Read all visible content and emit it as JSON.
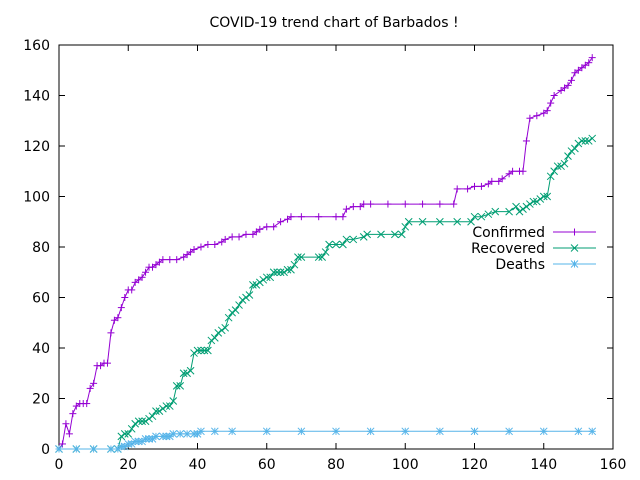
{
  "chart_data": {
    "type": "line",
    "title": "COVID-19 trend chart of Barbados !",
    "xlabel": "",
    "ylabel": "",
    "xlim": [
      0,
      160
    ],
    "ylim": [
      0,
      160
    ],
    "xticks": [
      "0",
      "20",
      "40",
      "60",
      "80",
      "100",
      "120",
      "140",
      "160"
    ],
    "yticks": [
      "0",
      "20",
      "40",
      "60",
      "80",
      "100",
      "120",
      "140",
      "160"
    ],
    "grid": false,
    "legend": "right",
    "series": [
      {
        "name": "Confirmed",
        "color": "#9400d3",
        "marker": "plus",
        "points": [
          [
            0,
            0
          ],
          [
            1,
            2
          ],
          [
            2,
            10
          ],
          [
            3,
            6
          ],
          [
            4,
            14
          ],
          [
            5,
            17
          ],
          [
            6,
            18
          ],
          [
            7,
            18
          ],
          [
            8,
            18
          ],
          [
            9,
            24
          ],
          [
            10,
            26
          ],
          [
            11,
            33
          ],
          [
            12,
            33
          ],
          [
            13,
            34
          ],
          [
            14,
            34
          ],
          [
            15,
            46
          ],
          [
            16,
            51
          ],
          [
            17,
            52
          ],
          [
            18,
            56
          ],
          [
            19,
            60
          ],
          [
            20,
            63
          ],
          [
            21,
            63
          ],
          [
            22,
            66
          ],
          [
            23,
            67
          ],
          [
            24,
            68
          ],
          [
            25,
            70
          ],
          [
            26,
            72
          ],
          [
            27,
            72
          ],
          [
            28,
            73
          ],
          [
            29,
            74
          ],
          [
            30,
            75
          ],
          [
            32,
            75
          ],
          [
            34,
            75
          ],
          [
            36,
            76
          ],
          [
            37,
            77
          ],
          [
            38,
            78
          ],
          [
            39,
            79
          ],
          [
            41,
            80
          ],
          [
            43,
            81
          ],
          [
            45,
            81
          ],
          [
            47,
            82
          ],
          [
            48,
            83
          ],
          [
            50,
            84
          ],
          [
            52,
            84
          ],
          [
            54,
            85
          ],
          [
            56,
            85
          ],
          [
            57,
            86
          ],
          [
            58,
            87
          ],
          [
            60,
            88
          ],
          [
            62,
            88
          ],
          [
            64,
            90
          ],
          [
            66,
            91
          ],
          [
            67,
            92
          ],
          [
            70,
            92
          ],
          [
            75,
            92
          ],
          [
            80,
            92
          ],
          [
            82,
            92
          ],
          [
            83,
            95
          ],
          [
            85,
            96
          ],
          [
            87,
            96
          ],
          [
            88,
            97
          ],
          [
            90,
            97
          ],
          [
            95,
            97
          ],
          [
            100,
            97
          ],
          [
            105,
            97
          ],
          [
            110,
            97
          ],
          [
            114,
            97
          ],
          [
            115,
            103
          ],
          [
            118,
            103
          ],
          [
            120,
            104
          ],
          [
            122,
            104
          ],
          [
            124,
            105
          ],
          [
            125,
            106
          ],
          [
            127,
            106
          ],
          [
            128,
            107
          ],
          [
            130,
            109
          ],
          [
            131,
            110
          ],
          [
            133,
            110
          ],
          [
            134,
            110
          ],
          [
            135,
            122
          ],
          [
            136,
            131
          ],
          [
            138,
            132
          ],
          [
            140,
            133
          ],
          [
            141,
            134
          ],
          [
            142,
            137
          ],
          [
            143,
            140
          ],
          [
            145,
            142
          ],
          [
            146,
            143
          ],
          [
            147,
            144
          ],
          [
            148,
            146
          ],
          [
            149,
            149
          ],
          [
            150,
            150
          ],
          [
            151,
            151
          ],
          [
            152,
            152
          ],
          [
            153,
            153
          ],
          [
            154,
            155
          ]
        ]
      },
      {
        "name": "Recovered",
        "color": "#009e73",
        "marker": "x",
        "points": [
          [
            0,
            0
          ],
          [
            5,
            0
          ],
          [
            10,
            0
          ],
          [
            15,
            0
          ],
          [
            17,
            0
          ],
          [
            18,
            5
          ],
          [
            19,
            6
          ],
          [
            20,
            6
          ],
          [
            21,
            8
          ],
          [
            22,
            10
          ],
          [
            23,
            11
          ],
          [
            24,
            11
          ],
          [
            25,
            11
          ],
          [
            26,
            12
          ],
          [
            27,
            13
          ],
          [
            28,
            15
          ],
          [
            29,
            15
          ],
          [
            30,
            16
          ],
          [
            31,
            17
          ],
          [
            32,
            17
          ],
          [
            33,
            19
          ],
          [
            34,
            25
          ],
          [
            35,
            25
          ],
          [
            36,
            30
          ],
          [
            37,
            30
          ],
          [
            38,
            31
          ],
          [
            39,
            38
          ],
          [
            40,
            39
          ],
          [
            41,
            39
          ],
          [
            42,
            39
          ],
          [
            43,
            39
          ],
          [
            44,
            43
          ],
          [
            45,
            44
          ],
          [
            46,
            46
          ],
          [
            47,
            47
          ],
          [
            48,
            48
          ],
          [
            49,
            52
          ],
          [
            50,
            54
          ],
          [
            51,
            55
          ],
          [
            52,
            57
          ],
          [
            53,
            59
          ],
          [
            54,
            60
          ],
          [
            55,
            61
          ],
          [
            56,
            65
          ],
          [
            57,
            65
          ],
          [
            58,
            66
          ],
          [
            59,
            67
          ],
          [
            60,
            68
          ],
          [
            61,
            68
          ],
          [
            62,
            70
          ],
          [
            63,
            70
          ],
          [
            64,
            70
          ],
          [
            65,
            70
          ],
          [
            66,
            71
          ],
          [
            67,
            71
          ],
          [
            68,
            73
          ],
          [
            69,
            76
          ],
          [
            70,
            76
          ],
          [
            75,
            76
          ],
          [
            76,
            76
          ],
          [
            77,
            78
          ],
          [
            78,
            81
          ],
          [
            80,
            81
          ],
          [
            82,
            81
          ],
          [
            83,
            83
          ],
          [
            85,
            83
          ],
          [
            88,
            84
          ],
          [
            89,
            85
          ],
          [
            93,
            85
          ],
          [
            97,
            85
          ],
          [
            99,
            85
          ],
          [
            100,
            88
          ],
          [
            101,
            90
          ],
          [
            105,
            90
          ],
          [
            110,
            90
          ],
          [
            115,
            90
          ],
          [
            119,
            90
          ],
          [
            120,
            92
          ],
          [
            122,
            92
          ],
          [
            124,
            93
          ],
          [
            126,
            94
          ],
          [
            130,
            94
          ],
          [
            132,
            96
          ],
          [
            133,
            94
          ],
          [
            134,
            95
          ],
          [
            135,
            96
          ],
          [
            136,
            97
          ],
          [
            137,
            98
          ],
          [
            138,
            98
          ],
          [
            139,
            99
          ],
          [
            140,
            100
          ],
          [
            141,
            100
          ],
          [
            142,
            108
          ],
          [
            143,
            110
          ],
          [
            144,
            112
          ],
          [
            145,
            112
          ],
          [
            146,
            113
          ],
          [
            147,
            116
          ],
          [
            148,
            118
          ],
          [
            149,
            119
          ],
          [
            150,
            121
          ],
          [
            151,
            122
          ],
          [
            152,
            122
          ],
          [
            153,
            122
          ],
          [
            154,
            123
          ]
        ]
      },
      {
        "name": "Deaths",
        "color": "#56b4e9",
        "marker": "star",
        "points": [
          [
            0,
            0
          ],
          [
            5,
            0
          ],
          [
            10,
            0
          ],
          [
            15,
            0
          ],
          [
            17,
            0
          ],
          [
            18,
            1
          ],
          [
            19,
            1
          ],
          [
            20,
            2
          ],
          [
            21,
            2
          ],
          [
            22,
            3
          ],
          [
            23,
            3
          ],
          [
            24,
            3
          ],
          [
            25,
            4
          ],
          [
            26,
            4
          ],
          [
            27,
            4
          ],
          [
            28,
            5
          ],
          [
            30,
            5
          ],
          [
            31,
            5
          ],
          [
            32,
            5
          ],
          [
            33,
            6
          ],
          [
            35,
            6
          ],
          [
            37,
            6
          ],
          [
            39,
            6
          ],
          [
            40,
            6
          ],
          [
            41,
            7
          ],
          [
            45,
            7
          ],
          [
            50,
            7
          ],
          [
            60,
            7
          ],
          [
            70,
            7
          ],
          [
            80,
            7
          ],
          [
            90,
            7
          ],
          [
            100,
            7
          ],
          [
            110,
            7
          ],
          [
            120,
            7
          ],
          [
            130,
            7
          ],
          [
            140,
            7
          ],
          [
            150,
            7
          ],
          [
            154,
            7
          ]
        ]
      }
    ]
  }
}
